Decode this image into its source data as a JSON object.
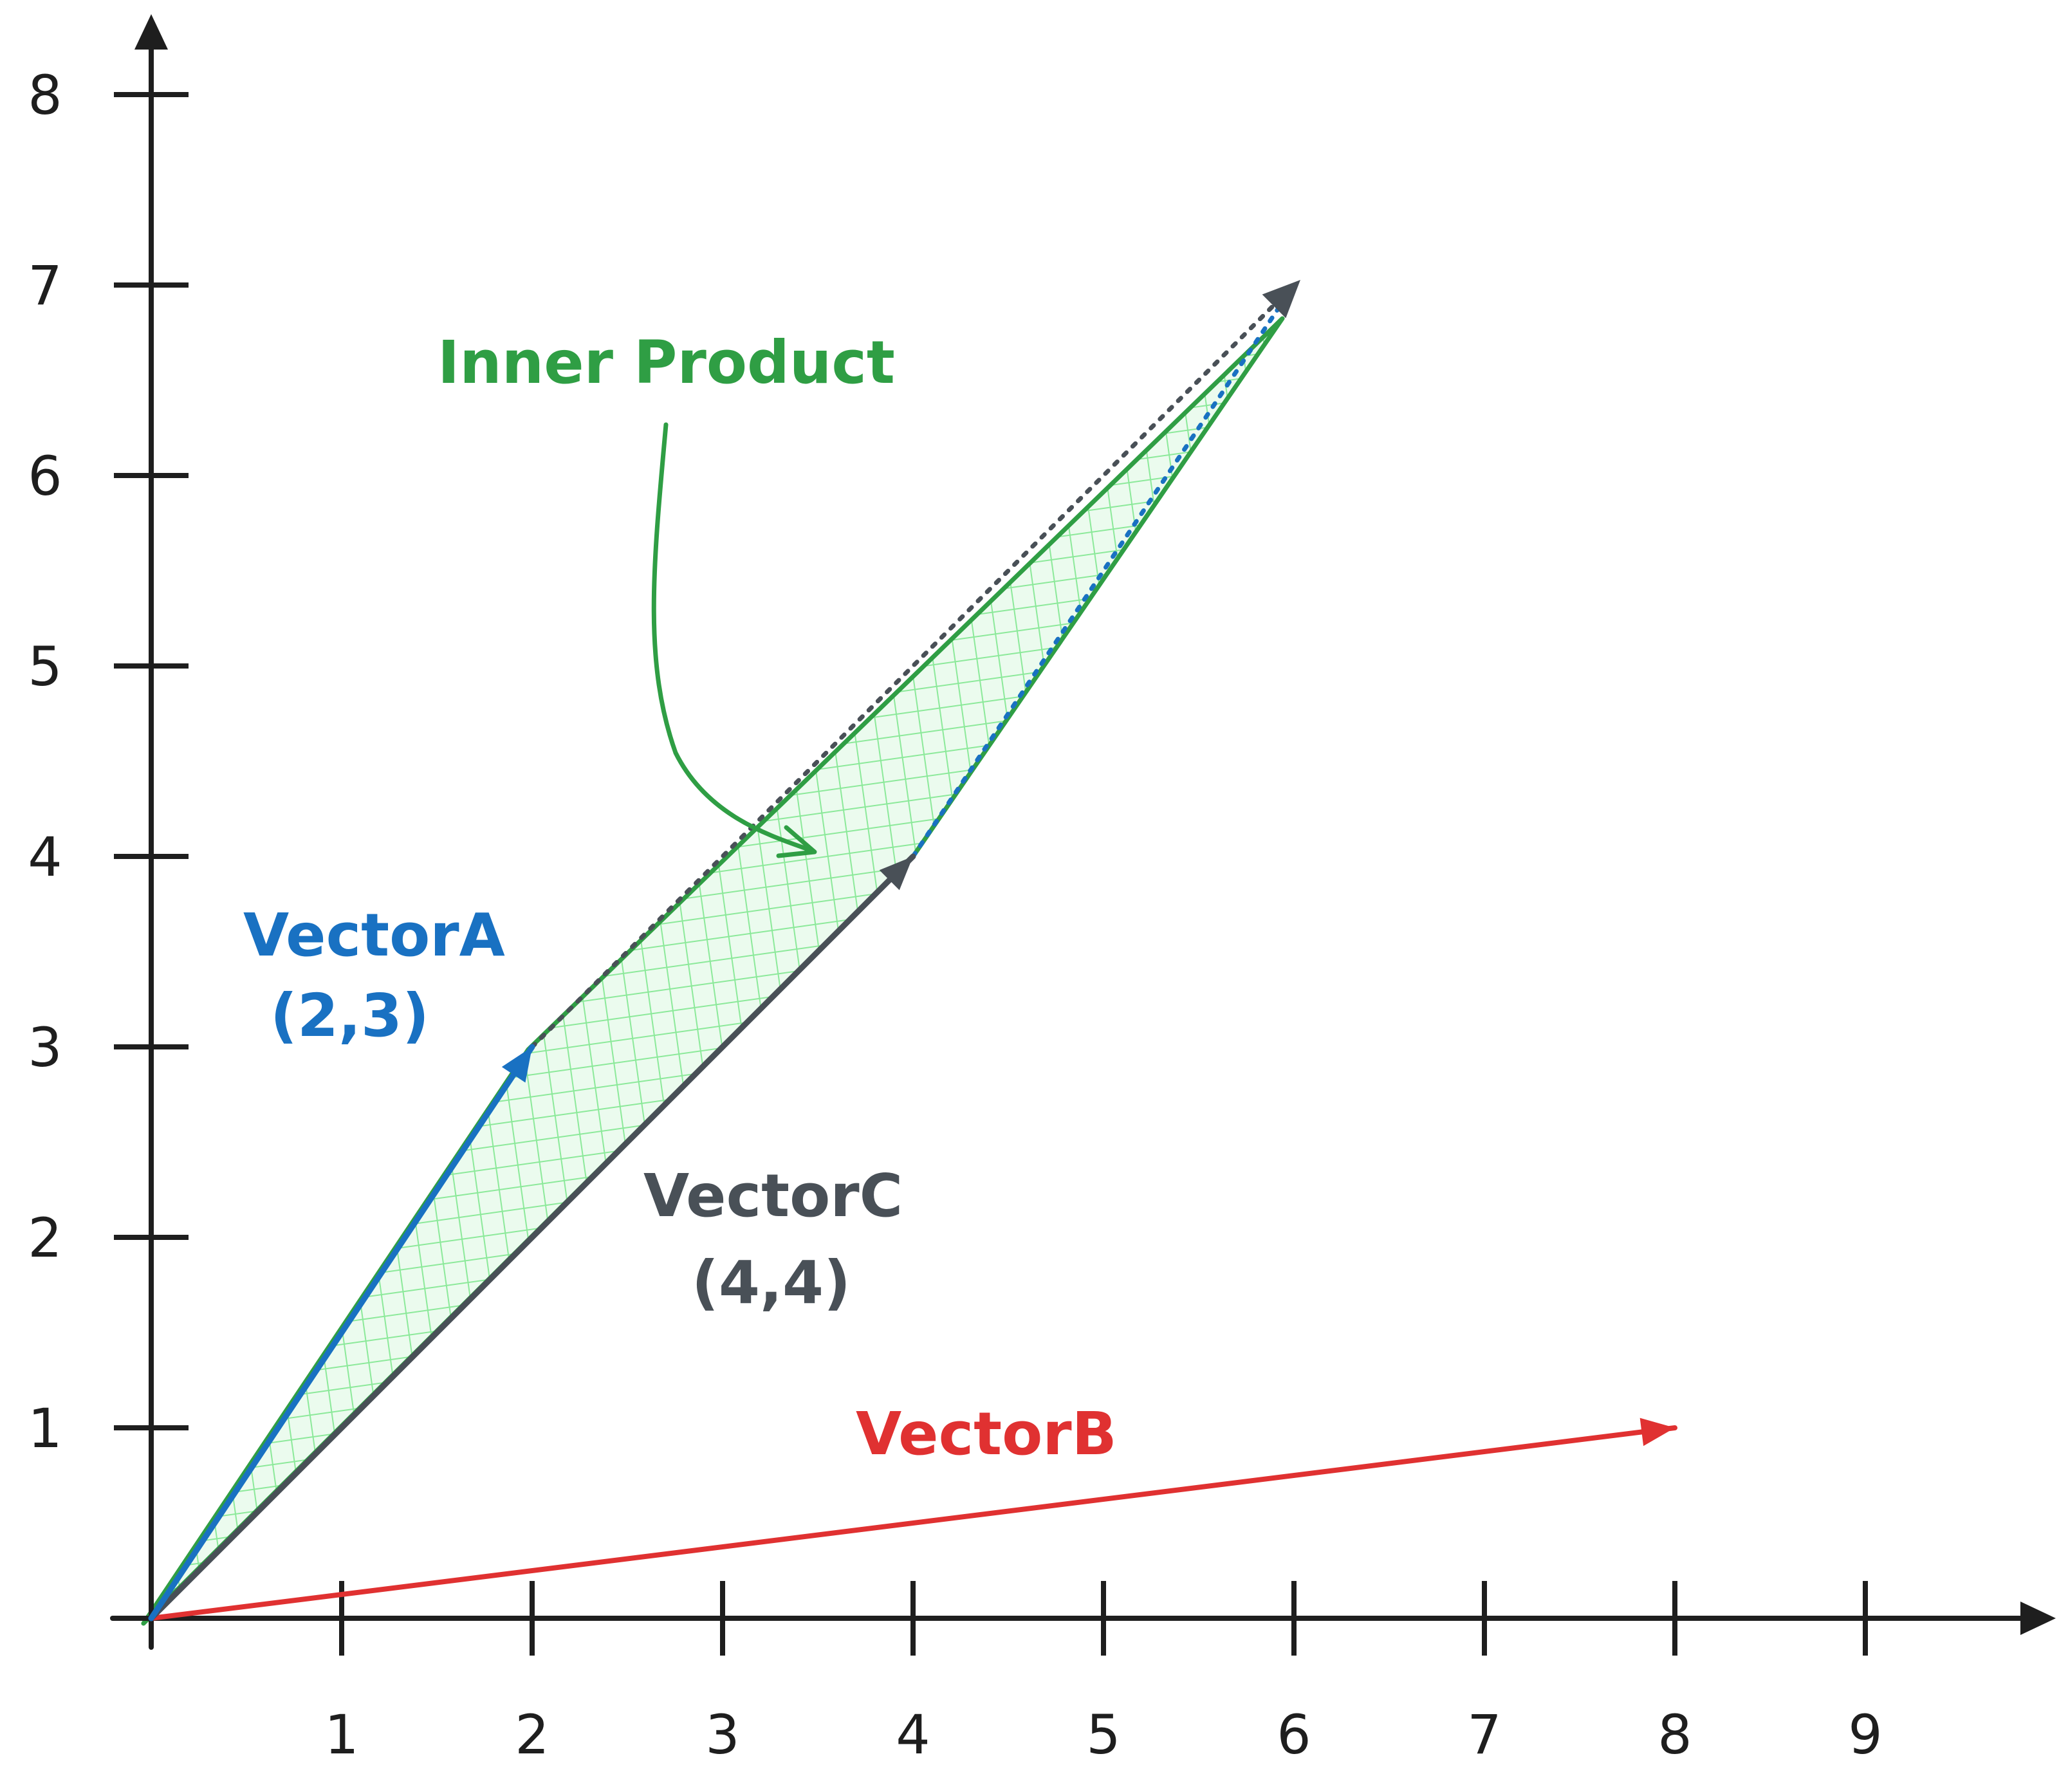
{
  "axes": {
    "x_ticks": [
      "1",
      "2",
      "3",
      "4",
      "5",
      "6",
      "7",
      "8",
      "9"
    ],
    "y_ticks": [
      "1",
      "2",
      "3",
      "4",
      "5",
      "6",
      "7",
      "8"
    ],
    "xlim": [
      0,
      10
    ],
    "ylim": [
      0,
      8.8
    ]
  },
  "vectors": {
    "a": {
      "name": "VectorA",
      "coords": "(2,3)",
      "x": 2,
      "y": 3,
      "color": "#1971c2"
    },
    "b": {
      "name": "VectorB",
      "x": 8,
      "y": 1,
      "color": "#e03131"
    },
    "c": {
      "name": "VectorC",
      "coords": "(4,4)",
      "x": 4,
      "y": 4,
      "color": "#495057"
    },
    "sum": {
      "x": 6,
      "y": 7,
      "color": "#495057"
    }
  },
  "annotation": {
    "text": "Inner Product",
    "color": "#2f9e44",
    "fill": "#b2f2bb"
  }
}
